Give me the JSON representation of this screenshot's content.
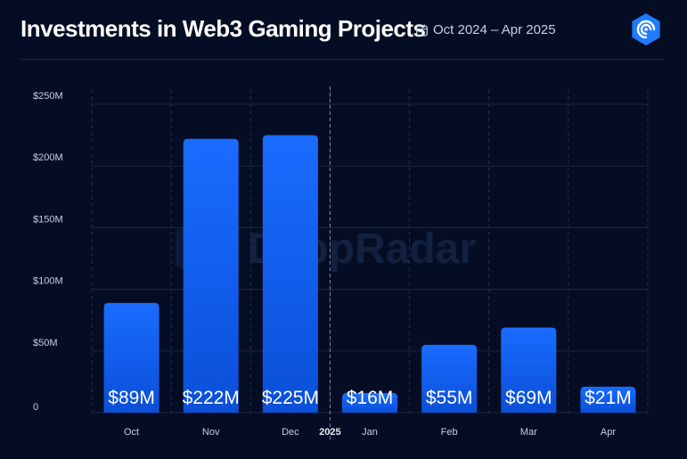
{
  "header": {
    "title": "Investments in Web3 Gaming Projects",
    "date_range": "Oct 2024 – Apr 2025",
    "calendar_icon": "calendar-icon",
    "logo_icon": "dappradar-logo-icon"
  },
  "watermark": {
    "text": "DappRadar"
  },
  "colors": {
    "background": "#050d24",
    "bar_top": "#1a6cff",
    "bar_bottom": "#0a4fd8",
    "grid": "#1c2744",
    "accent": "#1f7bff"
  },
  "chart_data": {
    "type": "bar",
    "categories": [
      "Oct",
      "Nov",
      "Dec",
      "Jan",
      "Feb",
      "Mar",
      "Apr"
    ],
    "values": [
      89,
      222,
      225,
      16,
      55,
      69,
      21
    ],
    "data_labels": [
      "$89M",
      "$222M",
      "$225M",
      "$16M",
      "$55M",
      "$69M",
      "$21M"
    ],
    "y_ticks": [
      0,
      50,
      100,
      150,
      200,
      250
    ],
    "y_tick_labels": [
      "0",
      "$50M",
      "$100M",
      "$150M",
      "$200M",
      "$250M"
    ],
    "ylim": [
      0,
      250
    ],
    "year_separator": {
      "before": "Jan",
      "label": "2025"
    },
    "title": "",
    "xlabel": "",
    "ylabel": "",
    "grid": true,
    "legend": "none"
  }
}
